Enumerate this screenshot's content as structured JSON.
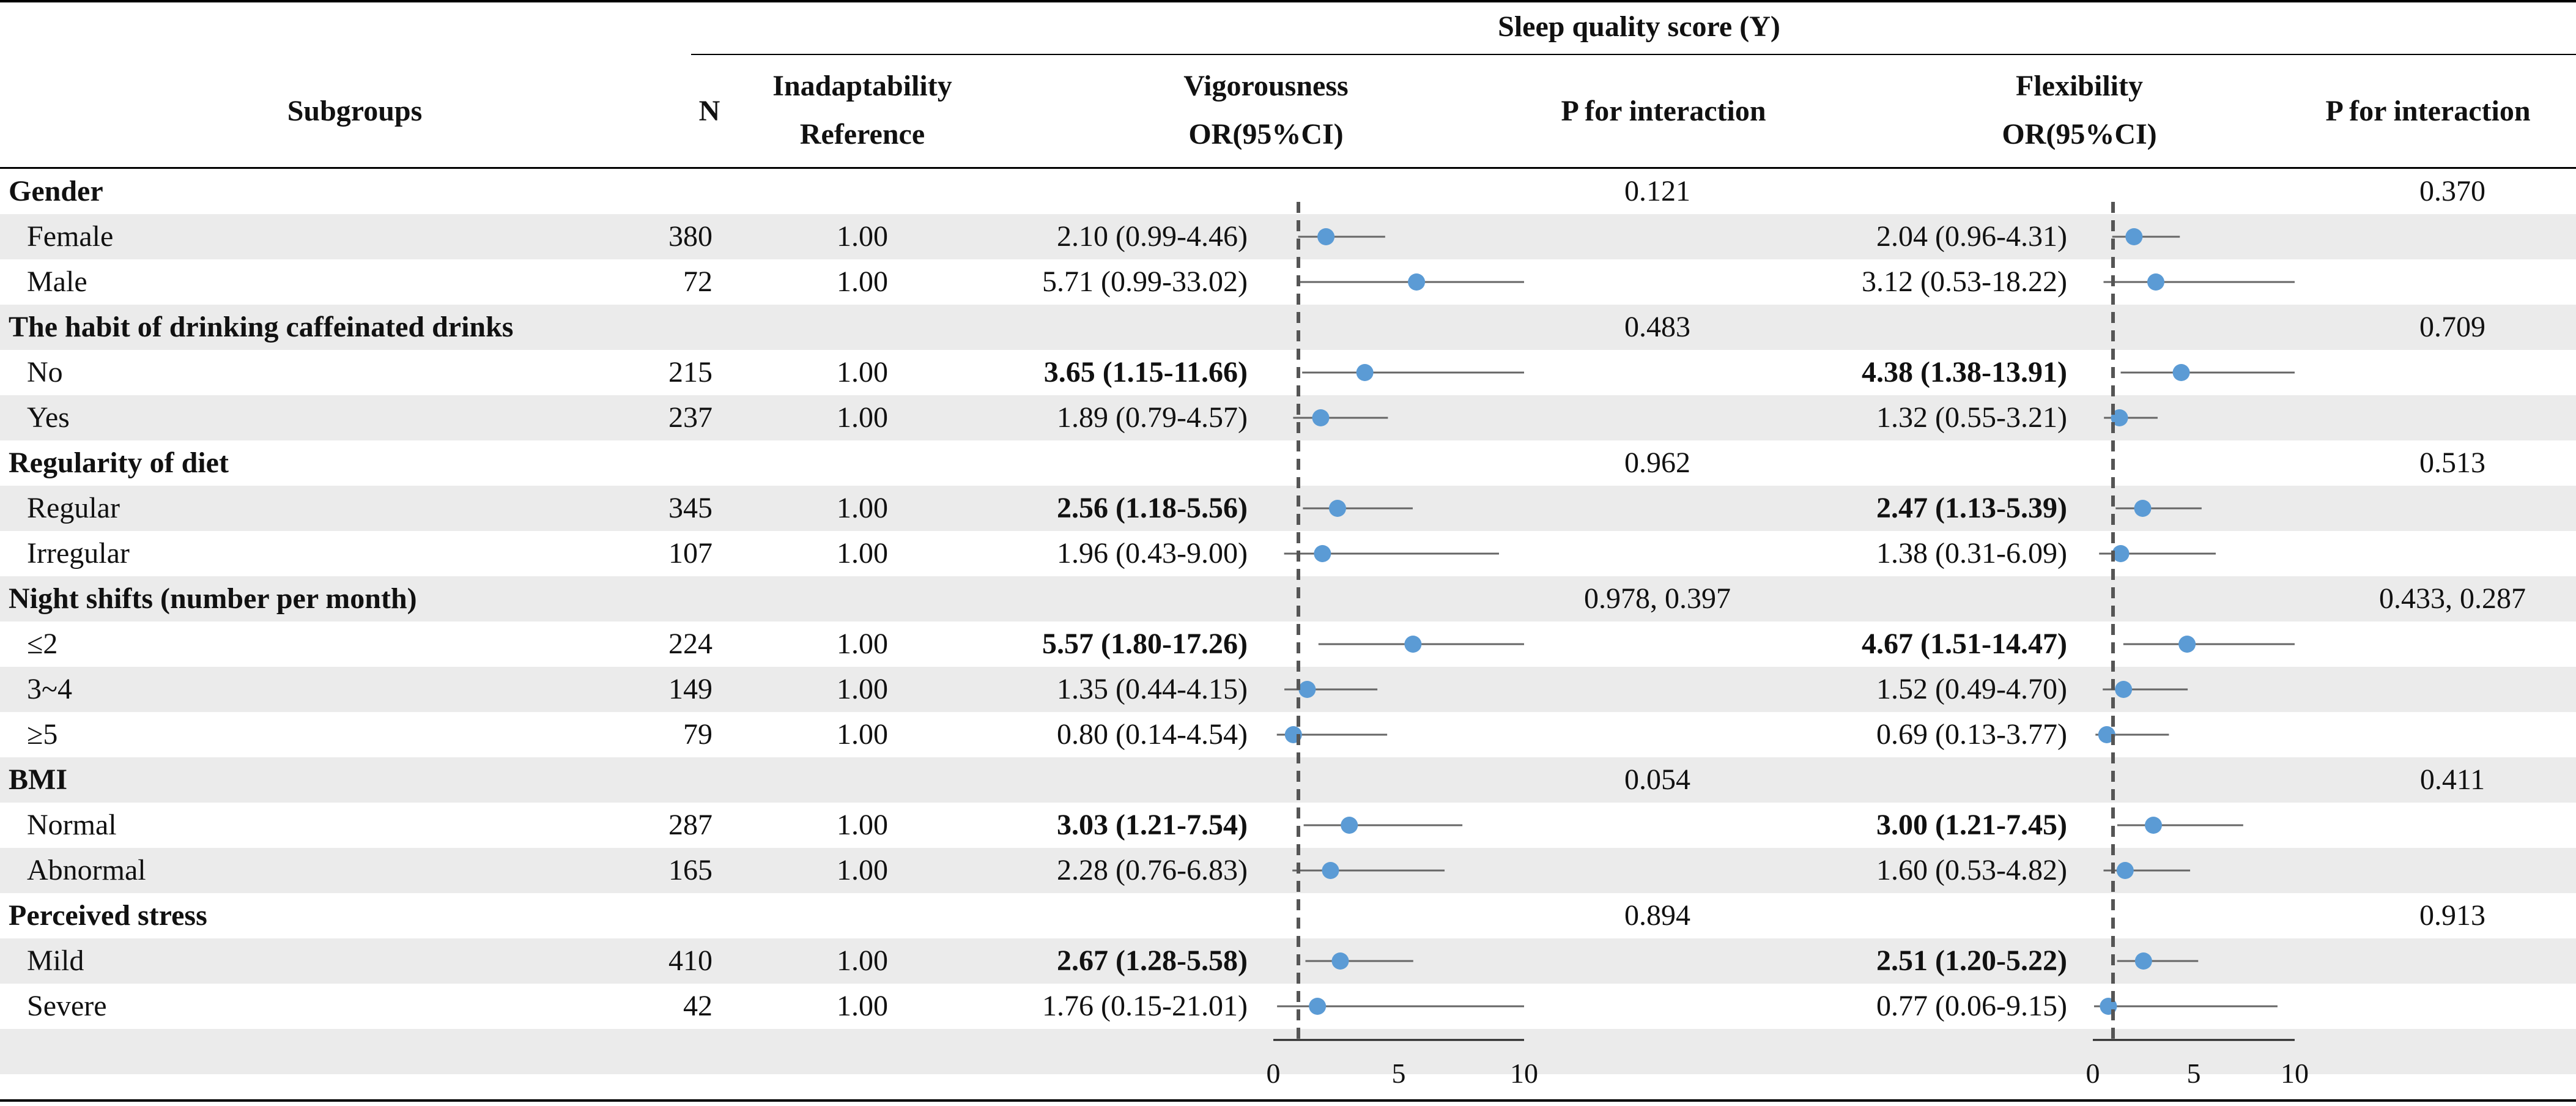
{
  "headers": {
    "group_title": "Sleep quality score (Y)",
    "subgroups": "Subgroups",
    "n": "N",
    "reference_l1": "Inadaptability",
    "reference_l2": "Reference",
    "vig_l1": "Vigorousness",
    "vig_l2": "OR(95%CI)",
    "p_vig": "P for interaction",
    "flex_l1": "Flexibility",
    "flex_l2": "OR(95%CI)",
    "p_flex": "P for interaction"
  },
  "chart_data": {
    "type": "forest",
    "title": "Sleep quality score (Y)",
    "reference_line": 1,
    "axes": [
      {
        "panel": "Vigorousness",
        "xlim": [
          0,
          10
        ],
        "ticks": [
          0,
          5,
          10
        ]
      },
      {
        "panel": "Flexibility",
        "xlim": [
          0,
          10
        ],
        "ticks": [
          0,
          5,
          10
        ]
      }
    ],
    "rows": [
      {
        "kind": "group",
        "label": "Gender",
        "p_vig": "0.121",
        "p_flex": "0.370"
      },
      {
        "kind": "item",
        "label": "Female",
        "n": "380",
        "ref": "1.00",
        "vig": {
          "text": "2.10 (0.99-4.46)",
          "or": 2.1,
          "lo": 0.99,
          "hi": 4.46,
          "bold": false
        },
        "flex": {
          "text": "2.04 (0.96-4.31)",
          "or": 2.04,
          "lo": 0.96,
          "hi": 4.31,
          "bold": false
        }
      },
      {
        "kind": "item",
        "label": "Male",
        "n": "72",
        "ref": "1.00",
        "vig": {
          "text": "5.71 (0.99-33.02)",
          "or": 5.71,
          "lo": 0.99,
          "hi": 33.02,
          "bold": false
        },
        "flex": {
          "text": "3.12 (0.53-18.22)",
          "or": 3.12,
          "lo": 0.53,
          "hi": 18.22,
          "bold": false
        }
      },
      {
        "kind": "group",
        "label": "The habit of drinking caffeinated drinks",
        "p_vig": "0.483",
        "p_flex": "0.709"
      },
      {
        "kind": "item",
        "label": "No",
        "n": "215",
        "ref": "1.00",
        "vig": {
          "text": "3.65 (1.15-11.66)",
          "or": 3.65,
          "lo": 1.15,
          "hi": 11.66,
          "bold": true
        },
        "flex": {
          "text": "4.38 (1.38-13.91)",
          "or": 4.38,
          "lo": 1.38,
          "hi": 13.91,
          "bold": true
        }
      },
      {
        "kind": "item",
        "label": "Yes",
        "n": "237",
        "ref": "1.00",
        "vig": {
          "text": "1.89 (0.79-4.57)",
          "or": 1.89,
          "lo": 0.79,
          "hi": 4.57,
          "bold": false
        },
        "flex": {
          "text": "1.32 (0.55-3.21)",
          "or": 1.32,
          "lo": 0.55,
          "hi": 3.21,
          "bold": false
        }
      },
      {
        "kind": "group",
        "label": "Regularity of diet",
        "p_vig": "0.962",
        "p_flex": "0.513"
      },
      {
        "kind": "item",
        "label": "Regular",
        "n": "345",
        "ref": "1.00",
        "vig": {
          "text": "2.56 (1.18-5.56)",
          "or": 2.56,
          "lo": 1.18,
          "hi": 5.56,
          "bold": true
        },
        "flex": {
          "text": "2.47 (1.13-5.39)",
          "or": 2.47,
          "lo": 1.13,
          "hi": 5.39,
          "bold": true
        }
      },
      {
        "kind": "item",
        "label": "Irregular",
        "n": "107",
        "ref": "1.00",
        "vig": {
          "text": "1.96 (0.43-9.00)",
          "or": 1.96,
          "lo": 0.43,
          "hi": 9.0,
          "bold": false
        },
        "flex": {
          "text": "1.38 (0.31-6.09)",
          "or": 1.38,
          "lo": 0.31,
          "hi": 6.09,
          "bold": false
        }
      },
      {
        "kind": "group",
        "label": "Night shifts (number per month)",
        "p_vig": "0.978, 0.397",
        "p_flex": "0.433, 0.287"
      },
      {
        "kind": "item",
        "label": "≤2",
        "n": "224",
        "ref": "1.00",
        "vig": {
          "text": "5.57 (1.80-17.26)",
          "or": 5.57,
          "lo": 1.8,
          "hi": 17.26,
          "bold": true
        },
        "flex": {
          "text": "4.67 (1.51-14.47)",
          "or": 4.67,
          "lo": 1.51,
          "hi": 14.47,
          "bold": true
        }
      },
      {
        "kind": "item",
        "label": "3~4",
        "n": "149",
        "ref": "1.00",
        "vig": {
          "text": "1.35 (0.44-4.15)",
          "or": 1.35,
          "lo": 0.44,
          "hi": 4.15,
          "bold": false
        },
        "flex": {
          "text": "1.52 (0.49-4.70)",
          "or": 1.52,
          "lo": 0.49,
          "hi": 4.7,
          "bold": false
        }
      },
      {
        "kind": "item",
        "label": "≥5",
        "n": "79",
        "ref": "1.00",
        "vig": {
          "text": "0.80 (0.14-4.54)",
          "or": 0.8,
          "lo": 0.14,
          "hi": 4.54,
          "bold": false
        },
        "flex": {
          "text": "0.69 (0.13-3.77)",
          "or": 0.69,
          "lo": 0.13,
          "hi": 3.77,
          "bold": false
        }
      },
      {
        "kind": "group",
        "label": "BMI",
        "p_vig": "0.054",
        "p_flex": "0.411"
      },
      {
        "kind": "item",
        "label": "Normal",
        "n": "287",
        "ref": "1.00",
        "vig": {
          "text": "3.03 (1.21-7.54)",
          "or": 3.03,
          "lo": 1.21,
          "hi": 7.54,
          "bold": true
        },
        "flex": {
          "text": "3.00 (1.21-7.45)",
          "or": 3.0,
          "lo": 1.21,
          "hi": 7.45,
          "bold": true
        }
      },
      {
        "kind": "item",
        "label": "Abnormal",
        "n": "165",
        "ref": "1.00",
        "vig": {
          "text": "2.28 (0.76-6.83)",
          "or": 2.28,
          "lo": 0.76,
          "hi": 6.83,
          "bold": false
        },
        "flex": {
          "text": "1.60 (0.53-4.82)",
          "or": 1.6,
          "lo": 0.53,
          "hi": 4.82,
          "bold": false
        }
      },
      {
        "kind": "group",
        "label": "Perceived stress",
        "p_vig": "0.894",
        "p_flex": "0.913"
      },
      {
        "kind": "item",
        "label": "Mild",
        "n": "410",
        "ref": "1.00",
        "vig": {
          "text": "2.67 (1.28-5.58)",
          "or": 2.67,
          "lo": 1.28,
          "hi": 5.58,
          "bold": true
        },
        "flex": {
          "text": "2.51 (1.20-5.22)",
          "or": 2.51,
          "lo": 1.2,
          "hi": 5.22,
          "bold": true
        }
      },
      {
        "kind": "item",
        "label": "Severe",
        "n": "42",
        "ref": "1.00",
        "vig": {
          "text": "1.76 (0.15-21.01)",
          "or": 1.76,
          "lo": 0.15,
          "hi": 21.01,
          "bold": false
        },
        "flex": {
          "text": "0.77 (0.06-9.15)",
          "or": 0.77,
          "lo": 0.06,
          "hi": 9.15,
          "bold": false
        }
      }
    ]
  },
  "colors": {
    "point": "#5b9bd5",
    "ci_line": "#666666",
    "ref_line": "#555555",
    "band": "#ebebeb"
  }
}
